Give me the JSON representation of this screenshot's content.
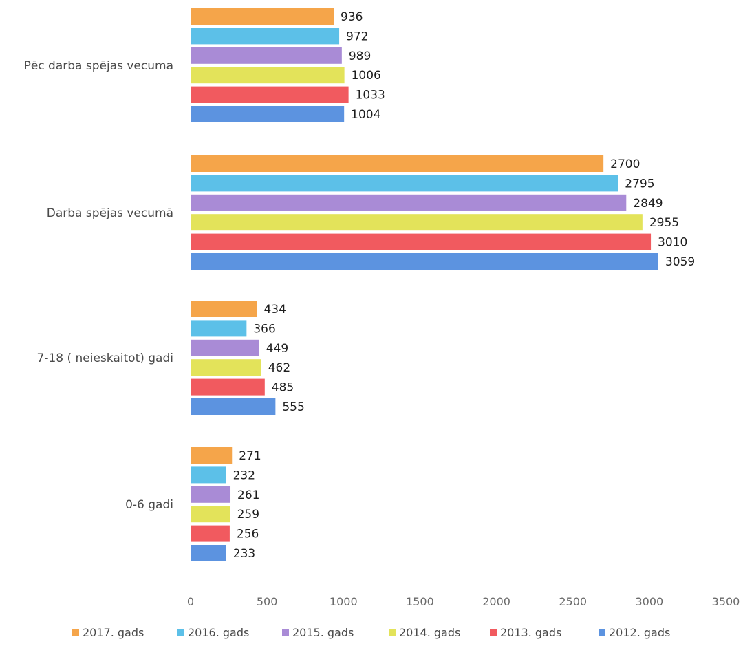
{
  "chart_data": {
    "type": "bar",
    "orientation": "horizontal",
    "categories": [
      "Pēc darba spējas vecuma",
      "Darba spējas vecumā",
      "7-18 ( neieskaitot) gadi",
      "0-6 gadi"
    ],
    "series": [
      {
        "name": "2017. gads",
        "color": "#f5a54a",
        "values": [
          936,
          2700,
          434,
          271
        ]
      },
      {
        "name": "2016. gads",
        "color": "#5cc0e8",
        "values": [
          972,
          2795,
          366,
          232
        ]
      },
      {
        "name": "2015. gads",
        "color": "#a98bd6",
        "values": [
          989,
          2849,
          449,
          261
        ]
      },
      {
        "name": "2014. gads",
        "color": "#e3e35a",
        "values": [
          1006,
          2955,
          462,
          259
        ]
      },
      {
        "name": "2013. gads",
        "color": "#f15a5f",
        "values": [
          1033,
          3010,
          485,
          256
        ]
      },
      {
        "name": "2012. gads",
        "color": "#5c93e0",
        "values": [
          1004,
          3059,
          555,
          233
        ]
      }
    ],
    "x_ticks": [
      "0",
      "500",
      "1000",
      "1500",
      "2000",
      "2500",
      "3000",
      "3500"
    ],
    "xlim": [
      0,
      3500
    ],
    "grid": false,
    "legend": "bottom"
  }
}
